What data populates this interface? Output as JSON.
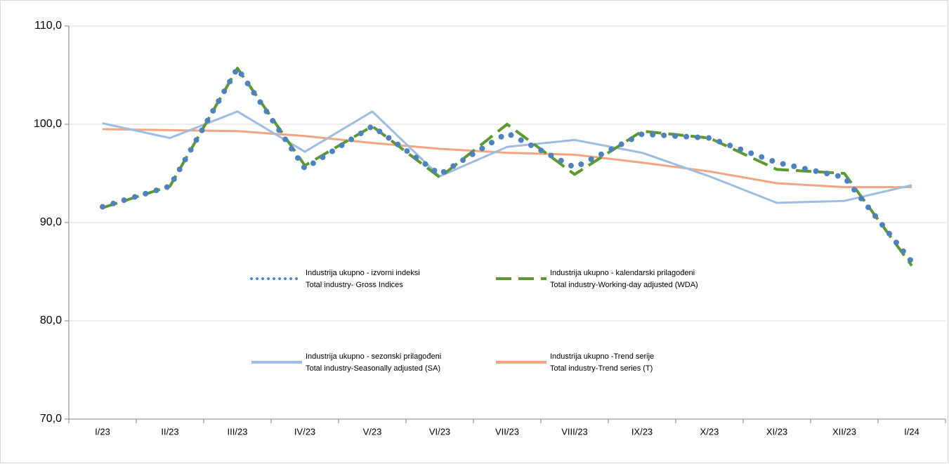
{
  "chart_data": {
    "type": "line",
    "categories": [
      "I/23",
      "II/23",
      "III/23",
      "IV/23",
      "V/23",
      "VI/23",
      "VII/23",
      "VIII/23",
      "IX/23",
      "X/23",
      "XI/23",
      "XII/23",
      "I/24"
    ],
    "series": [
      {
        "name": "Industrija ukupno - izvorni indeksi\nTotal industry- Gross Indices",
        "color": "#4f81bd",
        "style": "dotted",
        "values": [
          91.6,
          93.7,
          105.7,
          95.5,
          99.8,
          94.9,
          99.1,
          95.6,
          99.0,
          98.6,
          96.1,
          94.6,
          86.0
        ]
      },
      {
        "name": "Industrija ukupno - kalendarski prilagođeni\nTotal industry-Working-day adjusted (WDA)",
        "color": "#5a9a2f",
        "style": "dashed",
        "values": [
          91.5,
          93.7,
          105.7,
          95.8,
          99.8,
          94.6,
          100.0,
          94.9,
          99.3,
          98.6,
          95.4,
          95.0,
          85.6
        ]
      },
      {
        "name": "Industrija ukupno - sezonski prilagođeni\nTotal industry-Seasonally adjusted (SA)",
        "color": "#9dbde3",
        "style": "solid",
        "values": [
          100.1,
          98.6,
          101.3,
          97.2,
          101.3,
          94.7,
          97.7,
          98.4,
          97.1,
          94.7,
          92.0,
          92.2,
          93.8
        ]
      },
      {
        "name": "Industrija ukupno -Trend serije\nTotal industry-Trend series (T)",
        "color": "#f4a683",
        "style": "solid",
        "values": [
          99.5,
          99.4,
          99.3,
          98.8,
          98.1,
          97.5,
          97.1,
          96.9,
          96.1,
          95.2,
          94.0,
          93.6,
          93.6
        ]
      }
    ],
    "ylim": [
      70,
      110
    ],
    "yticks": [
      {
        "value": 70,
        "label": "70,0"
      },
      {
        "value": 80,
        "label": "80,0"
      },
      {
        "value": 90,
        "label": "90,0"
      },
      {
        "value": 100,
        "label": "100,0"
      },
      {
        "value": 110,
        "label": "110,0"
      }
    ],
    "grid": true
  }
}
